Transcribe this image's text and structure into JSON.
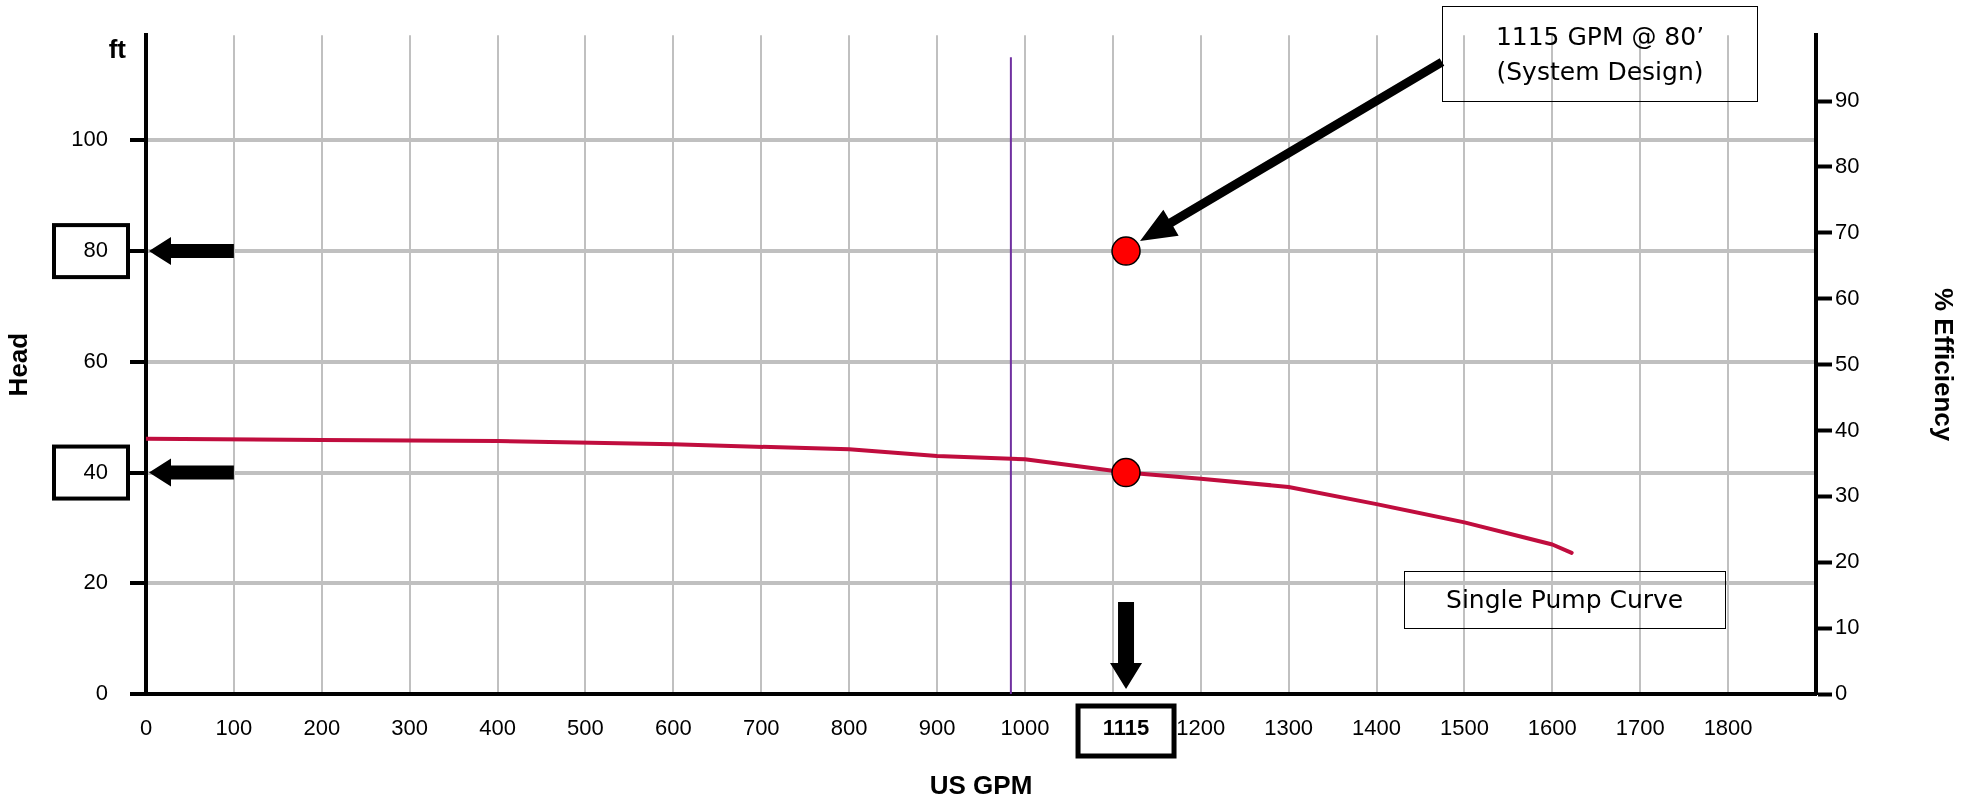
{
  "chart_data": {
    "type": "line",
    "xlabel": "US GPM",
    "ylabel": "Head",
    "y2label": "% Efficiency",
    "xlim": [
      0,
      1900
    ],
    "xticks": [
      0,
      100,
      200,
      300,
      400,
      500,
      600,
      700,
      800,
      900,
      1000,
      {
        "value": 1100,
        "label": null
      },
      1115,
      1200,
      1300,
      1400,
      1500,
      1600,
      1700,
      1800
    ],
    "ylim": [
      0,
      119
    ],
    "yticks": [
      0,
      20,
      40,
      60,
      80,
      100
    ],
    "y2lim": [
      0,
      100
    ],
    "y2ticks": [
      0,
      10,
      20,
      30,
      40,
      50,
      60,
      70,
      80,
      90
    ],
    "grid": true,
    "series": [
      {
        "name": "Single Pump Curve",
        "color": "#c00d3e",
        "x": [
          0,
          200,
          400,
          600,
          800,
          900,
          1000,
          1115,
          1200,
          1300,
          1400,
          1500,
          1600,
          1622
        ],
        "values": [
          46.1,
          45.9,
          45.7,
          45.1,
          44.2,
          43.0,
          42.4,
          40,
          38.9,
          37.4,
          34.3,
          31,
          27,
          25.5
        ]
      },
      {
        "type": "scatter",
        "color": "#ff0000",
        "x": [
          1115,
          1115
        ],
        "values": [
          80,
          40
        ]
      }
    ],
    "ref_lines": [
      {
        "axis": "x",
        "value": 984,
        "color": "#7030a0"
      }
    ],
    "annotations": [
      "ft",
      "1115 GPM @ 80’\n(System Design)"
    ]
  }
}
